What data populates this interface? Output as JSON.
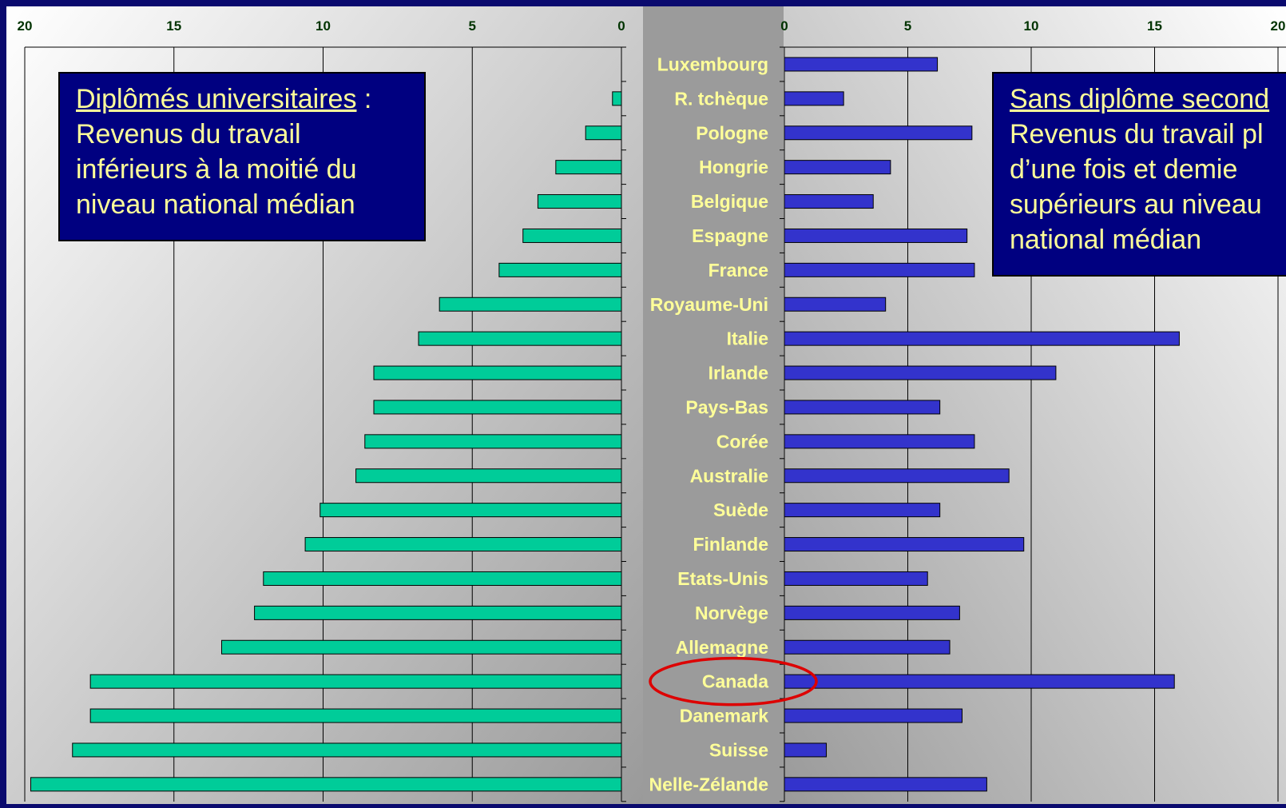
{
  "colors": {
    "background": "#0a0a6e",
    "left_bar": "#00cc99",
    "right_bar": "#3333cc",
    "country_label": "#ffff99",
    "tick_label": "#003300",
    "highlight_ellipse": "#dd0000",
    "box_fill": "#000080"
  },
  "chart_data": [
    {
      "type": "bar",
      "orientation": "horizontal",
      "direction": "right-to-left",
      "categories": [
        "Luxembourg",
        "R. tchèque",
        "Pologne",
        "Hongrie",
        "Belgique",
        "Espagne",
        "France",
        "Royaume-Uni",
        "Italie",
        "Irlande",
        "Pays-Bas",
        "Corée",
        "Australie",
        "Suède",
        "Finlande",
        "Etats-Unis",
        "Norvège",
        "Allemagne",
        "Canada",
        "Danemark",
        "Suisse",
        "Nelle-Zélande"
      ],
      "values": [
        0,
        0.3,
        1.2,
        2.2,
        2.8,
        3.3,
        4.1,
        6.1,
        6.8,
        8.3,
        8.3,
        8.6,
        8.9,
        10.1,
        10.6,
        12.0,
        12.3,
        13.4,
        17.8,
        17.8,
        18.4,
        19.8
      ],
      "xlim": [
        0,
        20
      ],
      "x_ticks": [
        20,
        15,
        10,
        5,
        0
      ],
      "grid": true,
      "text_box": {
        "heading": "Diplômés universitaires",
        "heading_suffix": " :",
        "lines": [
          "Revenus du travail",
          "inférieurs à la moitié du",
          "niveau national médian"
        ]
      }
    },
    {
      "type": "bar",
      "orientation": "horizontal",
      "direction": "left-to-right",
      "categories": [
        "Luxembourg",
        "R. tchèque",
        "Pologne",
        "Hongrie",
        "Belgique",
        "Espagne",
        "France",
        "Royaume-Uni",
        "Italie",
        "Irlande",
        "Pays-Bas",
        "Corée",
        "Australie",
        "Suède",
        "Finlande",
        "Etats-Unis",
        "Norvège",
        "Allemagne",
        "Canada",
        "Danemark",
        "Suisse",
        "Nelle-Zélande"
      ],
      "values": [
        6.2,
        2.4,
        7.6,
        4.3,
        3.6,
        7.4,
        7.7,
        4.1,
        16.0,
        11.0,
        6.3,
        7.7,
        9.1,
        6.3,
        9.7,
        5.8,
        7.1,
        6.7,
        15.8,
        7.2,
        1.7,
        8.2
      ],
      "xlim": [
        0,
        20
      ],
      "x_ticks": [
        0,
        5,
        10,
        15,
        20
      ],
      "grid": true,
      "highlighted_category": "Canada",
      "text_box": {
        "heading": "Sans diplôme second",
        "lines": [
          "Revenus du travail pl",
          "d’une fois et demie",
          "supérieurs au niveau",
          "national médian"
        ]
      }
    }
  ]
}
